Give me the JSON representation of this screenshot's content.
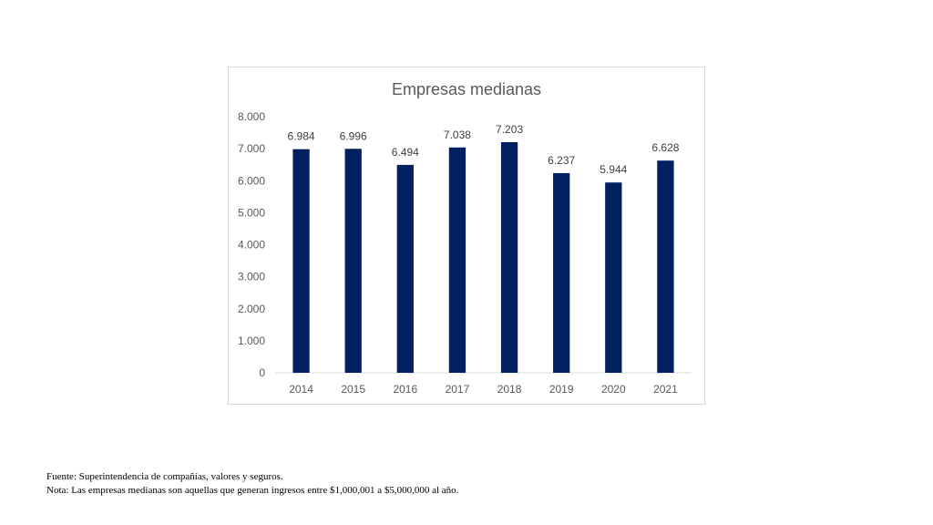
{
  "chart_data": {
    "type": "bar",
    "title": "Empresas medianas",
    "categories": [
      "2014",
      "2015",
      "2016",
      "2017",
      "2018",
      "2019",
      "2020",
      "2021"
    ],
    "values": [
      6984,
      6996,
      6494,
      7038,
      7203,
      6237,
      5944,
      6628
    ],
    "value_labels": [
      "6.984",
      "6.996",
      "6.494",
      "7.038",
      "7.203",
      "6.237",
      "5.944",
      "6.628"
    ],
    "y_ticks": [
      "0",
      "1.000",
      "2.000",
      "3.000",
      "4.000",
      "5.000",
      "6.000",
      "7.000",
      "8.000"
    ],
    "ylim": [
      0,
      8000
    ],
    "xlabel": "",
    "ylabel": "",
    "grid": false,
    "bar_color": "#002060"
  },
  "footnotes": {
    "source": "Fuente: Superintendencia de compañías, valores y seguros.",
    "note": "Nota: Las empresas medianas son aquellas que generan ingresos entre $1,000,001 a $5,000,000 al año."
  }
}
